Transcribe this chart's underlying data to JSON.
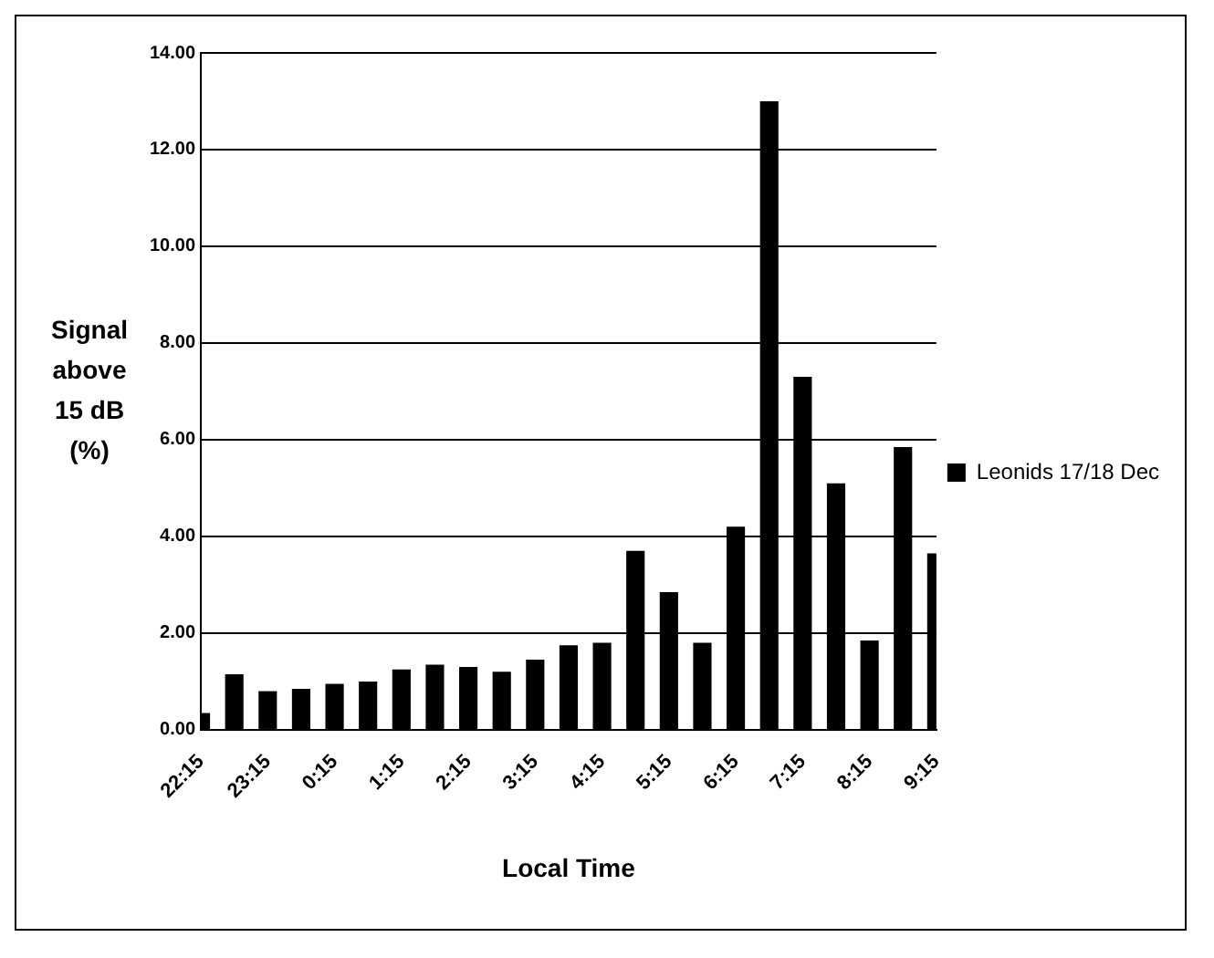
{
  "chart_data": {
    "type": "bar",
    "xlabel": "Local Time",
    "ylabel": "Signal above 15 dB (%)",
    "categories": [
      "22:15",
      null,
      "23:15",
      null,
      "0:15",
      null,
      "1:15",
      null,
      "2:15",
      null,
      "3:15",
      null,
      "4:15",
      null,
      "5:15",
      null,
      "6:15",
      null,
      "7:15",
      null,
      "8:15",
      null,
      "9:15"
    ],
    "series": [
      {
        "name": "Leonids 17/18 Dec",
        "color": "#000000",
        "values": [
          0.35,
          1.15,
          0.8,
          0.85,
          0.95,
          1.0,
          1.25,
          1.35,
          1.3,
          1.2,
          1.45,
          1.75,
          1.8,
          3.7,
          2.85,
          1.8,
          4.2,
          13.0,
          7.3,
          5.1,
          1.85,
          5.85,
          3.65
        ]
      }
    ],
    "ylim": [
      0,
      14
    ],
    "yticks": [
      {
        "value": 0,
        "label": "0.00"
      },
      {
        "value": 2,
        "label": "2.00"
      },
      {
        "value": 4,
        "label": "4.00"
      },
      {
        "value": 6,
        "label": "6.00"
      },
      {
        "value": 8,
        "label": "8.00"
      },
      {
        "value": 10,
        "label": "10.00"
      },
      {
        "value": 12,
        "label": "12.00"
      },
      {
        "value": 14,
        "label": "14.00"
      }
    ],
    "grid": "y",
    "legend": "right"
  }
}
